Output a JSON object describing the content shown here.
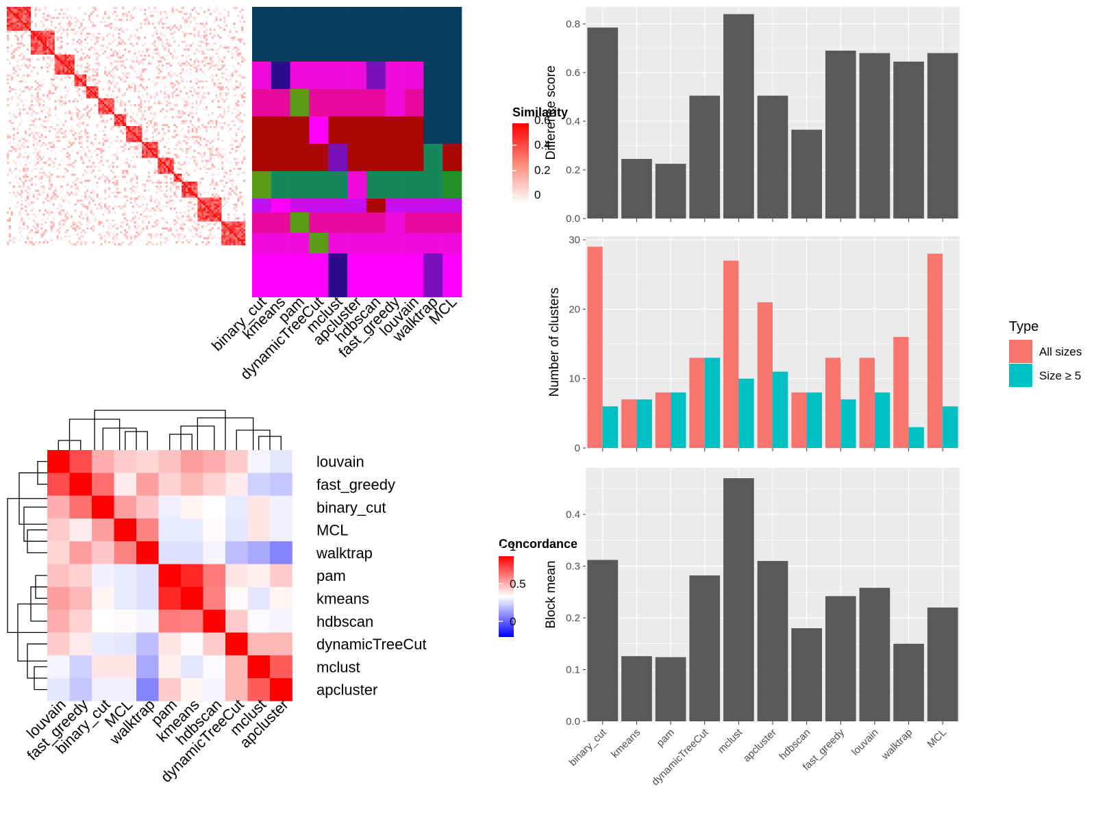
{
  "colors": {
    "panel_bg": "#ebebeb",
    "grid": "#ffffff",
    "bar_dark": "#595959",
    "all_sizes": "#f8766d",
    "size_ge5": "#00bfc4",
    "heat_high": "#ff0000",
    "heat_mid": "#ffffff",
    "heat_low": "#0000ff",
    "dend": "#000000"
  },
  "top_left": {
    "similarity_legend_title": "Similarity",
    "similarity_ticks": [
      "0",
      "0.2",
      "0.4",
      "0.6"
    ],
    "method_labels": [
      "binary_cut",
      "kmeans",
      "pam",
      "dynamicTreeCut",
      "mclust",
      "apcluster",
      "hdbscan",
      "fast_greedy",
      "louvain",
      "walktrap",
      "MCL"
    ],
    "palette": [
      "#083d5e",
      "#ee0cdb",
      "#e80a9c",
      "#aa0606",
      "#15875a",
      "#c60ff0",
      "#248f24",
      "#dca516",
      "#2b0c8c",
      "#0c4a48",
      "#5a9b1a",
      "#0e8a7a",
      "#ff00ff",
      "#7a0fbd"
    ]
  },
  "bottom_left": {
    "concordance_legend_title": "Concordance",
    "concordance_ticks": [
      "0",
      "0.5",
      "1"
    ],
    "row_labels": [
      "louvain",
      "fast_greedy",
      "binary_cut",
      "MCL",
      "walktrap",
      "pam",
      "kmeans",
      "hdbscan",
      "dynamicTreeCut",
      "mclust",
      "apcluster"
    ],
    "col_labels": [
      "louvain",
      "fast_greedy",
      "binary_cut",
      "MCL",
      "walktrap",
      "pam",
      "kmeans",
      "hdbscan",
      "dynamicTreeCut",
      "mclust",
      "apcluster"
    ],
    "matrix": [
      [
        1.0,
        0.85,
        0.66,
        0.6,
        0.58,
        0.62,
        0.69,
        0.66,
        0.6,
        0.48,
        0.45
      ],
      [
        0.85,
        1.0,
        0.78,
        0.54,
        0.69,
        0.59,
        0.64,
        0.59,
        0.54,
        0.41,
        0.39
      ],
      [
        0.66,
        0.78,
        1.0,
        0.69,
        0.61,
        0.47,
        0.52,
        0.5,
        0.46,
        0.55,
        0.47
      ],
      [
        0.6,
        0.54,
        0.69,
        1.0,
        0.74,
        0.46,
        0.46,
        0.51,
        0.45,
        0.55,
        0.47
      ],
      [
        0.58,
        0.69,
        0.61,
        0.74,
        1.0,
        0.44,
        0.44,
        0.48,
        0.37,
        0.33,
        0.26
      ],
      [
        0.62,
        0.59,
        0.47,
        0.46,
        0.44,
        1.0,
        0.92,
        0.76,
        0.55,
        0.53,
        0.6
      ],
      [
        0.69,
        0.64,
        0.52,
        0.46,
        0.44,
        0.92,
        1.0,
        0.75,
        0.51,
        0.45,
        0.52
      ],
      [
        0.66,
        0.59,
        0.5,
        0.51,
        0.48,
        0.76,
        0.75,
        1.0,
        0.6,
        0.49,
        0.48
      ],
      [
        0.6,
        0.54,
        0.46,
        0.45,
        0.37,
        0.55,
        0.51,
        0.6,
        1.0,
        0.64,
        0.64
      ],
      [
        0.48,
        0.41,
        0.55,
        0.55,
        0.33,
        0.53,
        0.45,
        0.49,
        0.64,
        1.0,
        0.82
      ],
      [
        0.45,
        0.39,
        0.47,
        0.47,
        0.26,
        0.6,
        0.52,
        0.48,
        0.64,
        0.82,
        1.0
      ]
    ]
  },
  "chart_data": [
    {
      "type": "bar",
      "categories": [
        "binary_cut",
        "kmeans",
        "pam",
        "dynamicTreeCut",
        "mclust",
        "apcluster",
        "hdbscan",
        "fast_greedy",
        "louvain",
        "walktrap",
        "MCL"
      ],
      "values": [
        0.785,
        0.245,
        0.225,
        0.505,
        0.84,
        0.505,
        0.365,
        0.69,
        0.68,
        0.645,
        0.68
      ],
      "ylabel": "Difference score",
      "ylim": [
        0,
        0.87
      ],
      "yticks": [
        "0.0",
        "0.2",
        "0.4",
        "0.6",
        "0.8"
      ],
      "grid": true
    },
    {
      "type": "bar",
      "categories": [
        "binary_cut",
        "kmeans",
        "pam",
        "dynamicTreeCut",
        "mclust",
        "apcluster",
        "hdbscan",
        "fast_greedy",
        "louvain",
        "walktrap",
        "MCL"
      ],
      "series": [
        {
          "name": "All sizes",
          "values": [
            29,
            7,
            8,
            13,
            27,
            21,
            8,
            13,
            13,
            16,
            28
          ]
        },
        {
          "name": "Size ≥ 5",
          "values": [
            6,
            7,
            8,
            13,
            10,
            11,
            8,
            7,
            8,
            3,
            6
          ]
        }
      ],
      "ylabel": "Number of clusters",
      "ylim": [
        0,
        30.5
      ],
      "yticks": [
        "0",
        "10",
        "20",
        "30"
      ],
      "legend_title": "Type",
      "legend_position": "right",
      "grid": true
    },
    {
      "type": "bar",
      "categories": [
        "binary_cut",
        "kmeans",
        "pam",
        "dynamicTreeCut",
        "mclust",
        "apcluster",
        "hdbscan",
        "fast_greedy",
        "louvain",
        "walktrap",
        "MCL"
      ],
      "values": [
        0.312,
        0.126,
        0.124,
        0.282,
        0.47,
        0.31,
        0.18,
        0.242,
        0.258,
        0.15,
        0.22
      ],
      "ylabel": "Block mean",
      "ylim": [
        0,
        0.49
      ],
      "yticks": [
        "0.0",
        "0.1",
        "0.2",
        "0.3",
        "0.4"
      ],
      "grid": true
    }
  ]
}
